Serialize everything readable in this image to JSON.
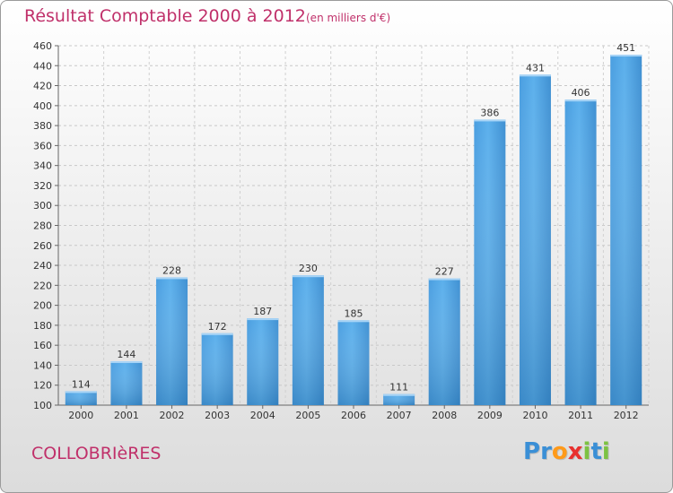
{
  "header": {
    "title": "Résultat Comptable 2000 à 2012",
    "subtitle": "(en milliers d'€)"
  },
  "footer": {
    "commune": "COLLOBRIèRES",
    "logo_letters": [
      "P",
      "r",
      "o",
      "x",
      "i",
      "t",
      "i"
    ],
    "logo_colors": [
      "#3a8fd6",
      "#3a8fd6",
      "#ff9a1a",
      "#e8312f",
      "#7cc242",
      "#3a8fd6",
      "#7cc242"
    ]
  },
  "chart_data": {
    "type": "bar",
    "title": "Résultat Comptable 2000 à 2012",
    "subtitle": "(en milliers d'€)",
    "xlabel": "",
    "ylabel": "",
    "categories": [
      "2000",
      "2001",
      "2002",
      "2003",
      "2004",
      "2005",
      "2006",
      "2007",
      "2008",
      "2009",
      "2010",
      "2011",
      "2012"
    ],
    "values": [
      114,
      144,
      228,
      172,
      187,
      230,
      185,
      111,
      227,
      386,
      431,
      406,
      451
    ],
    "ylim": [
      100,
      460
    ],
    "yticks": [
      100,
      120,
      140,
      160,
      180,
      200,
      220,
      240,
      260,
      280,
      300,
      320,
      340,
      360,
      380,
      400,
      420,
      440,
      460
    ],
    "grid": true,
    "bar_color_top": "#5aaae8",
    "bar_color_bottom": "#2a78b8"
  }
}
